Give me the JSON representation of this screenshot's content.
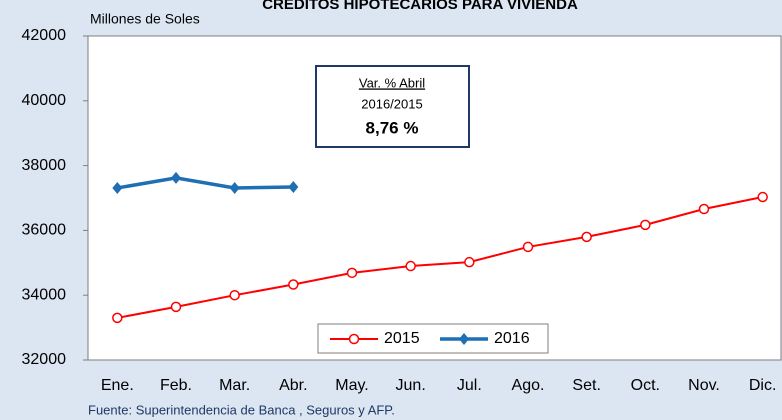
{
  "chart_data": {
    "type": "line",
    "title": "CRÉDITOS HIPOTECARIOS PARA VIVIENDA",
    "y_label": "Millones  de  Soles",
    "source": "Fuente: Superintendencia de Banca , Seguros y AFP.",
    "annotation": {
      "heading": "Var. % Abril",
      "period": "2016/2015",
      "value_label": "8,76 %"
    },
    "categories": [
      "Ene.",
      "Feb.",
      "Mar.",
      "Abr.",
      "May.",
      "Jun.",
      "Jul.",
      "Ago.",
      "Set.",
      "Oct.",
      "Nov.",
      "Dic."
    ],
    "series": [
      {
        "name": "2015",
        "color": "#ff0000",
        "marker": "circle",
        "values": [
          33300,
          33640,
          34000,
          34330,
          34690,
          34900,
          35020,
          35490,
          35800,
          36170,
          36660,
          37030
        ]
      },
      {
        "name": "2016",
        "color": "#1f6fb4",
        "marker": "diamond",
        "values": [
          37310,
          37620,
          37310,
          37340,
          null,
          null,
          null,
          null,
          null,
          null,
          null,
          null
        ]
      }
    ],
    "ylim": [
      32000,
      42000
    ],
    "yticks": [
      32000,
      34000,
      36000,
      38000,
      40000,
      42000
    ],
    "grid": false
  }
}
